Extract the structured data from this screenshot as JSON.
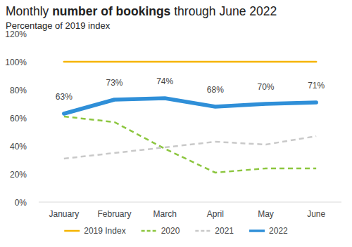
{
  "chart_data": {
    "type": "line",
    "title": "Monthly number of bookings through June 2022",
    "subtitle": "Percentage of 2019 index",
    "categories": [
      "January",
      "February",
      "March",
      "April",
      "May",
      "June"
    ],
    "series": [
      {
        "name": "2019 Index",
        "color": "#f5b400",
        "line_style": "solid",
        "values": [
          100,
          100,
          100,
          100,
          100,
          100
        ]
      },
      {
        "name": "2020",
        "color": "#8cc63f",
        "line_style": "dashed",
        "values": [
          61,
          57,
          38,
          21,
          24,
          24
        ]
      },
      {
        "name": "2021",
        "color": "#c9c9c9",
        "line_style": "dashed",
        "values": [
          31,
          35,
          39,
          43,
          41,
          47
        ]
      },
      {
        "name": "2022",
        "color": "#2f8fd8",
        "line_style": "bold",
        "data_labels": true,
        "values": [
          63,
          73,
          74,
          68,
          70,
          71
        ],
        "value_labels": [
          "63%",
          "73%",
          "74%",
          "68%",
          "70%",
          "71%"
        ]
      }
    ],
    "ylim": [
      0,
      120
    ],
    "yticks": [
      {
        "value": 0,
        "label": "0%"
      },
      {
        "value": 20,
        "label": "20%"
      },
      {
        "value": 40,
        "label": "40%"
      },
      {
        "value": 60,
        "label": "60%"
      },
      {
        "value": 80,
        "label": "80%"
      },
      {
        "value": 100,
        "label": "100%"
      },
      {
        "value": 120,
        "label": "120%"
      }
    ],
    "grid": false,
    "legend": "bottom"
  }
}
